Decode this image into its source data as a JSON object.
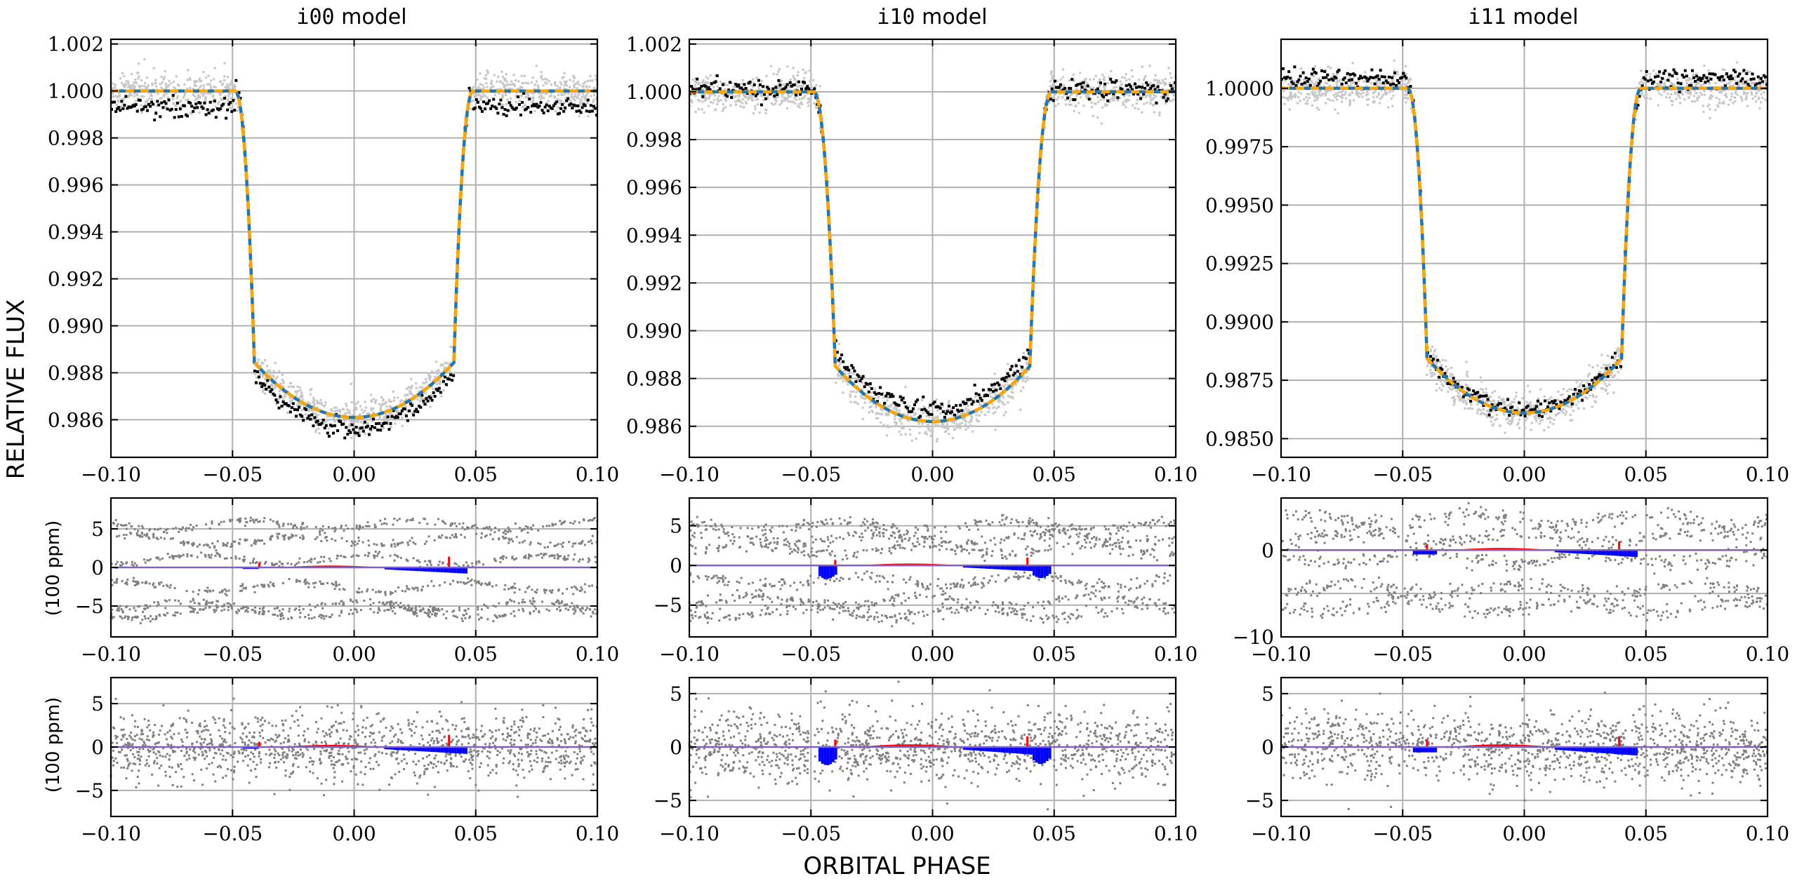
{
  "figure": {
    "ylabel_main": "RELATIVE FLUX",
    "xlabel": "ORBITAL PHASE",
    "residual_ylabel": "(100 ppm)"
  },
  "colors": {
    "model_blue": "#1f77b4",
    "model_orange": "#ffa500",
    "data_black": "#000000",
    "data_gray_light": "#c8c8c8",
    "residual_gray": "#808080",
    "positive_bar": "#ff0000",
    "negative_bar": "#0000ff",
    "zero_line": "#8060c0",
    "grid": "#b0b0b0"
  },
  "chart_data": [
    {
      "id": "i00",
      "title": "i00 model",
      "title_prefix": "i00",
      "title_suffix": "model",
      "light_curve": {
        "type": "scatter+line",
        "xlim": [
          -0.1,
          0.1
        ],
        "ylim": [
          0.9844,
          1.0022
        ],
        "xticks": [
          -0.1,
          -0.05,
          0.0,
          0.05,
          0.1
        ],
        "xtick_labels": [
          "−0.10",
          "−0.05",
          "0.00",
          "0.05",
          "0.10"
        ],
        "yticks": [
          0.986,
          0.988,
          0.99,
          0.992,
          0.994,
          0.996,
          0.998,
          1.0,
          1.002
        ],
        "ytick_labels": [
          "0.986",
          "0.988",
          "0.990",
          "0.992",
          "0.994",
          "0.996",
          "0.998",
          "1.000",
          "1.002"
        ],
        "transit": {
          "t1": 0.049,
          "t2": 0.041,
          "depth": 0.0139,
          "baseline": 1.0
        },
        "black_offset": {
          "out": -0.0007,
          "in": -0.0005
        },
        "black_noise": 0.0002
      },
      "residual_1": {
        "xlim": [
          -0.1,
          0.1
        ],
        "ylim": [
          -9,
          9
        ],
        "yticks": [
          -5,
          0,
          5
        ],
        "ytick_labels": [
          "−5",
          "0",
          "5"
        ],
        "bands": [
          -6,
          -5,
          -2.5,
          1,
          3.5,
          5.5
        ],
        "band_noise": 0.6,
        "bar_sign": "i00"
      },
      "residual_2": {
        "xlim": [
          -0.1,
          0.1
        ],
        "ylim": [
          -8,
          8
        ],
        "yticks": [
          -5,
          0,
          5
        ],
        "ytick_labels": [
          "−5",
          "0",
          "5"
        ],
        "scatter_sigma": 2.5,
        "bar_sign": "i00"
      }
    },
    {
      "id": "i10",
      "title": "i10 model",
      "title_prefix": "i10",
      "title_suffix": "model",
      "light_curve": {
        "type": "scatter+line",
        "xlim": [
          -0.1,
          0.1
        ],
        "ylim": [
          0.9847,
          1.0022
        ],
        "xticks": [
          -0.1,
          -0.05,
          0.0,
          0.05,
          0.1
        ],
        "xtick_labels": [
          "−0.10",
          "−0.05",
          "0.00",
          "0.05",
          "0.10"
        ],
        "yticks": [
          0.986,
          0.988,
          0.99,
          0.992,
          0.994,
          0.996,
          0.998,
          1.0,
          1.002
        ],
        "ytick_labels": [
          "0.986",
          "0.988",
          "0.990",
          "0.992",
          "0.994",
          "0.996",
          "0.998",
          "1.000",
          "1.002"
        ],
        "transit": {
          "t1": 0.049,
          "t2": 0.04,
          "depth": 0.0138,
          "baseline": 1.0
        },
        "black_offset": {
          "out": 0.0001,
          "in": 0.0005
        },
        "black_noise": 0.0002
      },
      "residual_1": {
        "xlim": [
          -0.1,
          0.1
        ],
        "ylim": [
          -9,
          8.5
        ],
        "yticks": [
          -5,
          0,
          5
        ],
        "ytick_labels": [
          "−5",
          "0",
          "5"
        ],
        "bands": [
          -6,
          -4.5,
          -2,
          2,
          3.5,
          5
        ],
        "band_noise": 0.9,
        "bar_sign": "i10"
      },
      "residual_2": {
        "xlim": [
          -0.1,
          0.1
        ],
        "ylim": [
          -6.5,
          6.5
        ],
        "yticks": [
          -5,
          0,
          5
        ],
        "ytick_labels": [
          "−5",
          "0",
          "5"
        ],
        "scatter_sigma": 2.2,
        "bar_sign": "i10"
      }
    },
    {
      "id": "i11",
      "title": "i11 model",
      "title_prefix": "i11",
      "title_suffix": "model",
      "light_curve": {
        "type": "scatter+line",
        "xlim": [
          -0.1,
          0.1
        ],
        "ylim": [
          0.9842,
          1.0021
        ],
        "xticks": [
          -0.1,
          -0.05,
          0.0,
          0.05,
          0.1
        ],
        "xtick_labels": [
          "−0.10",
          "−0.05",
          "0.00",
          "0.05",
          "0.10"
        ],
        "yticks": [
          0.985,
          0.9875,
          0.99,
          0.9925,
          0.995,
          0.9975,
          1.0
        ],
        "ytick_labels": [
          "0.9850",
          "0.9875",
          "0.9900",
          "0.9925",
          "0.9950",
          "0.9975",
          "1.0000"
        ],
        "transit": {
          "t1": 0.048,
          "t2": 0.04,
          "depth": 0.0139,
          "baseline": 1.0
        },
        "black_offset": {
          "out": 0.0004,
          "in": 0.0001
        },
        "black_noise": 0.0002
      },
      "residual_1": {
        "xlim": [
          -0.1,
          0.1
        ],
        "ylim": [
          -10,
          6
        ],
        "yticks": [
          -10,
          0
        ],
        "ytick_labels": [
          "−10",
          "0"
        ],
        "bands": [
          -6.5,
          -4.5,
          -1,
          1.5,
          3.5
        ],
        "band_noise": 1.1,
        "bar_sign": "i11"
      },
      "residual_2": {
        "xlim": [
          -0.1,
          0.1
        ],
        "ylim": [
          -6.5,
          6.5
        ],
        "yticks": [
          -5,
          0,
          5
        ],
        "ytick_labels": [
          "−5",
          "0",
          "5"
        ],
        "scatter_sigma": 2.2,
        "bar_sign": "i11"
      }
    }
  ]
}
